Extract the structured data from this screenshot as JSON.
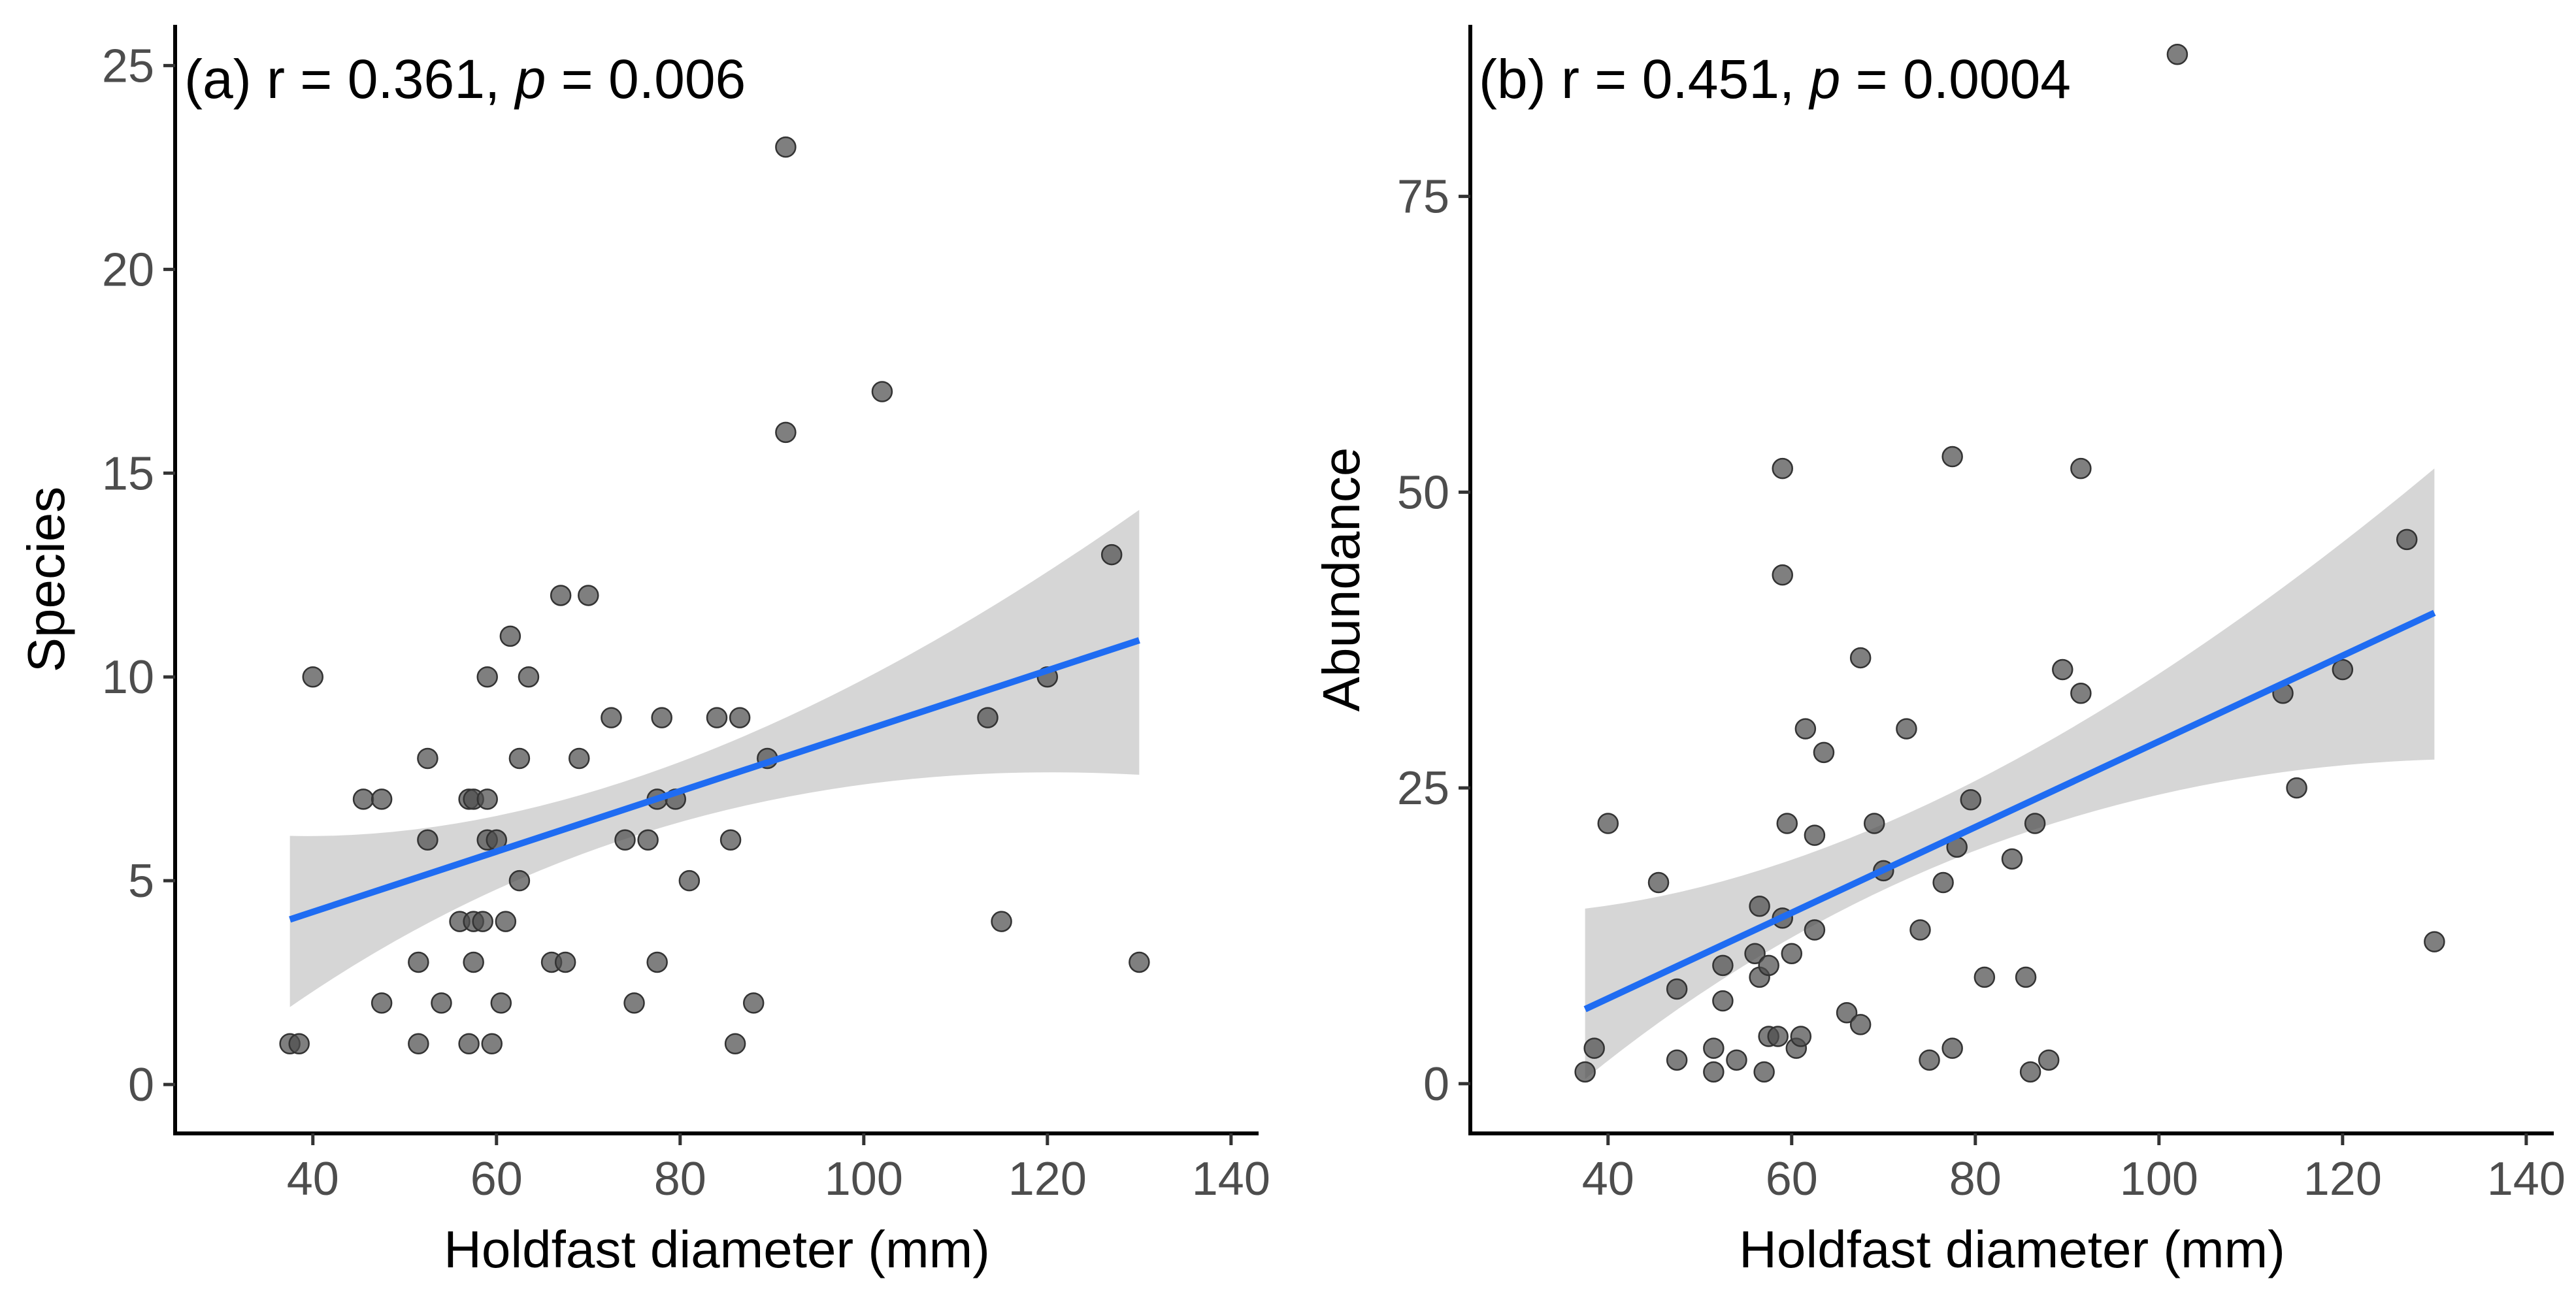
{
  "chart_data": [
    {
      "type": "scatter",
      "panel_label": "(a)",
      "annotation": {
        "prefix": "(a) r = 0.361, ",
        "p_symbol": "p",
        "p_text": " = 0.006"
      },
      "xlabel": "Holdfast diameter (mm)",
      "ylabel": "Species",
      "xlim": [
        25,
        143
      ],
      "ylim": [
        -1.2,
        26
      ],
      "xticks": [
        40,
        60,
        80,
        100,
        120,
        140
      ],
      "yticks": [
        0,
        5,
        10,
        15,
        20,
        25
      ],
      "points": [
        [
          37.5,
          1
        ],
        [
          38.5,
          1
        ],
        [
          40,
          10
        ],
        [
          45.5,
          7
        ],
        [
          47.5,
          7
        ],
        [
          47.5,
          2
        ],
        [
          51.5,
          3
        ],
        [
          51.5,
          1
        ],
        [
          52.5,
          8
        ],
        [
          52.5,
          6
        ],
        [
          54,
          2
        ],
        [
          56,
          4
        ],
        [
          57,
          7
        ],
        [
          57.5,
          7
        ],
        [
          57,
          1
        ],
        [
          57.5,
          3
        ],
        [
          57.5,
          4
        ],
        [
          58.5,
          4
        ],
        [
          59,
          10
        ],
        [
          59,
          7
        ],
        [
          59,
          6
        ],
        [
          59.5,
          1
        ],
        [
          60,
          6
        ],
        [
          60.5,
          2
        ],
        [
          61,
          4
        ],
        [
          61.5,
          11
        ],
        [
          62.5,
          8
        ],
        [
          62.5,
          5
        ],
        [
          63.5,
          10
        ],
        [
          66,
          3
        ],
        [
          67,
          12
        ],
        [
          67.5,
          3
        ],
        [
          69,
          8
        ],
        [
          70,
          12
        ],
        [
          72.5,
          9
        ],
        [
          74,
          6
        ],
        [
          75,
          2
        ],
        [
          76.5,
          6
        ],
        [
          77.5,
          3
        ],
        [
          77.5,
          7
        ],
        [
          78,
          9
        ],
        [
          79.5,
          7
        ],
        [
          81,
          5
        ],
        [
          84,
          9
        ],
        [
          85.5,
          6
        ],
        [
          86,
          1
        ],
        [
          86.5,
          9
        ],
        [
          88,
          2
        ],
        [
          89.5,
          8
        ],
        [
          91.5,
          16
        ],
        [
          91.5,
          23
        ],
        [
          102,
          17
        ],
        [
          113.5,
          9
        ],
        [
          115,
          4
        ],
        [
          120,
          10
        ],
        [
          127,
          13
        ],
        [
          130,
          3
        ]
      ],
      "fit": {
        "x_range": [
          37.5,
          130
        ],
        "y_start": 4.05,
        "y_end": 10.9,
        "ci_lower": [
          1.9,
          7.6
        ],
        "ci_upper": [
          6.1,
          14.1
        ],
        "ci_mid_x": 81,
        "ci_mid": [
          6.5,
          8.0
        ]
      },
      "colors": {
        "line": "#1f6cf2",
        "band": "#999999",
        "point": "#4d4d4d"
      }
    },
    {
      "type": "scatter",
      "panel_label": "(b)",
      "annotation": {
        "prefix": "(b) r = 0.451, ",
        "p_symbol": "p",
        "p_text": " = 0.0004"
      },
      "xlabel": "Holdfast diameter (mm)",
      "ylabel": "Abundance",
      "xlim": [
        25,
        143
      ],
      "ylim": [
        -4.2,
        89.5
      ],
      "xticks": [
        40,
        60,
        80,
        100,
        120,
        140
      ],
      "yticks": [
        0,
        25,
        50,
        75
      ],
      "points": [
        [
          37.5,
          1
        ],
        [
          38.5,
          3
        ],
        [
          40,
          22
        ],
        [
          45.5,
          17
        ],
        [
          47.5,
          8
        ],
        [
          47.5,
          2
        ],
        [
          51.5,
          3
        ],
        [
          51.5,
          1
        ],
        [
          52.5,
          10
        ],
        [
          52.5,
          7
        ],
        [
          54,
          2
        ],
        [
          56,
          11
        ],
        [
          56.5,
          15
        ],
        [
          56.5,
          9
        ],
        [
          57,
          1
        ],
        [
          57.5,
          10
        ],
        [
          57.5,
          4
        ],
        [
          58.5,
          4
        ],
        [
          59,
          52
        ],
        [
          59,
          43
        ],
        [
          59,
          14
        ],
        [
          59.5,
          22
        ],
        [
          60,
          11
        ],
        [
          60.5,
          3
        ],
        [
          61,
          4
        ],
        [
          61.5,
          30
        ],
        [
          62.5,
          21
        ],
        [
          62.5,
          13
        ],
        [
          63.5,
          28
        ],
        [
          66,
          6
        ],
        [
          67.5,
          5
        ],
        [
          67.5,
          36
        ],
        [
          69,
          22
        ],
        [
          70,
          18
        ],
        [
          72.5,
          30
        ],
        [
          74,
          13
        ],
        [
          75,
          2
        ],
        [
          76.5,
          17
        ],
        [
          77.5,
          53
        ],
        [
          77.5,
          3
        ],
        [
          78,
          20
        ],
        [
          79.5,
          24
        ],
        [
          81,
          9
        ],
        [
          84,
          19
        ],
        [
          85.5,
          9
        ],
        [
          86,
          1
        ],
        [
          86.5,
          22
        ],
        [
          88,
          2
        ],
        [
          89.5,
          35
        ],
        [
          91.5,
          33
        ],
        [
          91.5,
          52
        ],
        [
          102,
          87
        ],
        [
          113.5,
          33
        ],
        [
          115,
          25
        ],
        [
          120,
          35
        ],
        [
          127,
          46
        ],
        [
          130,
          12
        ]
      ],
      "fit": {
        "x_range": [
          37.5,
          130
        ],
        "y_start": 6.3,
        "y_end": 39.8,
        "ci_lower": [
          0.4,
          27.4
        ],
        "ci_upper": [
          14.8,
          52.0
        ],
        "ci_mid_x": 81,
        "ci_mid": [
          20.0,
          26.0
        ]
      },
      "colors": {
        "line": "#1f6cf2",
        "band": "#999999",
        "point": "#4d4d4d"
      }
    }
  ]
}
